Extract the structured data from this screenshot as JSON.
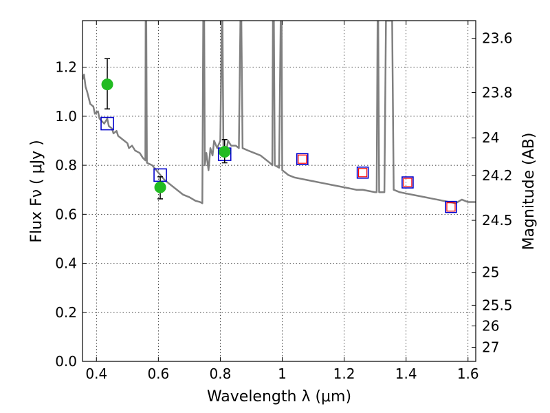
{
  "chart_data": {
    "type": "scatter",
    "xlabel": "Wavelength  λ (μm)",
    "ylabel": "Flux  Fν  ( μJy )",
    "ylabel_right": "Magnitude (AB)",
    "xlim": [
      0.355,
      1.625
    ],
    "ylim": [
      0.0,
      1.39
    ],
    "grid": true,
    "x_ticks": [
      "0.4",
      "0.6",
      "0.8",
      "1",
      "1.2",
      "1.4",
      "1.6"
    ],
    "x_tick_values": [
      0.4,
      0.6,
      0.8,
      1.0,
      1.2,
      1.4,
      1.6
    ],
    "y_ticks": [
      "0.0",
      "0.2",
      "0.4",
      "0.6",
      "0.8",
      "1.0",
      "1.2"
    ],
    "y_tick_values": [
      0.0,
      0.2,
      0.4,
      0.6,
      0.8,
      1.0,
      1.2
    ],
    "right_ticks": [
      "23.6",
      "23.8",
      "24",
      "24.2",
      "24.5",
      "25",
      "25.5",
      "26",
      "27"
    ],
    "right_tick_values": [
      23.6,
      23.8,
      24.0,
      24.2,
      24.5,
      25.0,
      25.5,
      26.0,
      27.0
    ],
    "colors": {
      "model": "#808080",
      "observed": "#22bb22",
      "model_blue": "#0000cc",
      "model_red": "#ff0000"
    },
    "series": [
      {
        "kind": "model-spectrum",
        "points": [
          [
            0.355,
            1.15
          ],
          [
            0.36,
            1.17
          ],
          [
            0.365,
            1.12
          ],
          [
            0.37,
            1.1
          ],
          [
            0.38,
            1.05
          ],
          [
            0.39,
            1.04
          ],
          [
            0.395,
            1.01
          ],
          [
            0.405,
            1.02
          ],
          [
            0.41,
            0.99
          ],
          [
            0.425,
            0.97
          ],
          [
            0.435,
            0.99
          ],
          [
            0.44,
            0.96
          ],
          [
            0.45,
            0.95
          ],
          [
            0.455,
            0.93
          ],
          [
            0.465,
            0.94
          ],
          [
            0.47,
            0.92
          ],
          [
            0.49,
            0.9
          ],
          [
            0.5,
            0.89
          ],
          [
            0.505,
            0.87
          ],
          [
            0.515,
            0.88
          ],
          [
            0.525,
            0.86
          ],
          [
            0.54,
            0.85
          ],
          [
            0.55,
            0.83
          ],
          [
            0.558,
            0.82
          ],
          [
            0.559,
            1.39
          ],
          [
            0.561,
            1.39
          ],
          [
            0.563,
            0.81
          ],
          [
            0.58,
            0.8
          ],
          [
            0.6,
            0.77
          ],
          [
            0.62,
            0.74
          ],
          [
            0.64,
            0.72
          ],
          [
            0.66,
            0.7
          ],
          [
            0.68,
            0.68
          ],
          [
            0.7,
            0.67
          ],
          [
            0.72,
            0.655
          ],
          [
            0.735,
            0.65
          ],
          [
            0.742,
            0.645
          ],
          [
            0.745,
            1.39
          ],
          [
            0.748,
            1.39
          ],
          [
            0.75,
            0.8
          ],
          [
            0.755,
            0.85
          ],
          [
            0.762,
            0.78
          ],
          [
            0.768,
            0.87
          ],
          [
            0.775,
            0.84
          ],
          [
            0.78,
            0.9
          ],
          [
            0.79,
            0.87
          ],
          [
            0.8,
            0.9
          ],
          [
            0.805,
            1.39
          ],
          [
            0.807,
            1.39
          ],
          [
            0.81,
            0.88
          ],
          [
            0.82,
            0.86
          ],
          [
            0.825,
            0.9
          ],
          [
            0.835,
            0.88
          ],
          [
            0.85,
            0.88
          ],
          [
            0.86,
            0.87
          ],
          [
            0.865,
            1.39
          ],
          [
            0.868,
            1.39
          ],
          [
            0.872,
            0.87
          ],
          [
            0.89,
            0.86
          ],
          [
            0.91,
            0.85
          ],
          [
            0.93,
            0.84
          ],
          [
            0.95,
            0.82
          ],
          [
            0.96,
            0.81
          ],
          [
            0.968,
            0.8
          ],
          [
            0.97,
            1.39
          ],
          [
            0.973,
            1.39
          ],
          [
            0.976,
            0.8
          ],
          [
            0.99,
            0.79
          ],
          [
            0.995,
            1.39
          ],
          [
            0.998,
            1.39
          ],
          [
            1.0,
            0.78
          ],
          [
            1.01,
            0.77
          ],
          [
            1.02,
            0.76
          ],
          [
            1.04,
            0.75
          ],
          [
            1.06,
            0.745
          ],
          [
            1.08,
            0.74
          ],
          [
            1.1,
            0.735
          ],
          [
            1.12,
            0.73
          ],
          [
            1.14,
            0.725
          ],
          [
            1.16,
            0.72
          ],
          [
            1.18,
            0.715
          ],
          [
            1.2,
            0.71
          ],
          [
            1.22,
            0.705
          ],
          [
            1.24,
            0.7
          ],
          [
            1.26,
            0.7
          ],
          [
            1.28,
            0.695
          ],
          [
            1.3,
            0.69
          ],
          [
            1.305,
            0.69
          ],
          [
            1.308,
            1.39
          ],
          [
            1.31,
            1.39
          ],
          [
            1.313,
            0.69
          ],
          [
            1.32,
            0.69
          ],
          [
            1.33,
            0.69
          ],
          [
            1.335,
            1.39
          ],
          [
            1.355,
            1.39
          ],
          [
            1.36,
            0.7
          ],
          [
            1.38,
            0.69
          ],
          [
            1.4,
            0.685
          ],
          [
            1.42,
            0.68
          ],
          [
            1.44,
            0.675
          ],
          [
            1.46,
            0.67
          ],
          [
            1.48,
            0.665
          ],
          [
            1.5,
            0.66
          ],
          [
            1.52,
            0.655
          ],
          [
            1.54,
            0.65
          ],
          [
            1.56,
            0.645
          ],
          [
            1.58,
            0.66
          ],
          [
            1.6,
            0.65
          ],
          [
            1.625,
            0.65
          ]
        ]
      },
      {
        "kind": "observed",
        "points": [
          {
            "x": 0.435,
            "y": 1.13,
            "yerr_low": 1.03,
            "yerr_high": 1.235
          },
          {
            "x": 0.606,
            "y": 0.71,
            "yerr_low": 0.663,
            "yerr_high": 0.753
          },
          {
            "x": 0.814,
            "y": 0.855,
            "yerr_low": 0.81,
            "yerr_high": 0.905
          }
        ]
      },
      {
        "kind": "model-photometry-blue",
        "points": [
          {
            "x": 0.435,
            "y": 0.97
          },
          {
            "x": 0.606,
            "y": 0.76
          },
          {
            "x": 0.814,
            "y": 0.845
          },
          {
            "x": 1.065,
            "y": 0.825
          },
          {
            "x": 1.26,
            "y": 0.77
          },
          {
            "x": 1.405,
            "y": 0.73
          },
          {
            "x": 1.545,
            "y": 0.63
          }
        ]
      },
      {
        "kind": "model-photometry-red",
        "points": [
          {
            "x": 1.065,
            "y": 0.825
          },
          {
            "x": 1.26,
            "y": 0.77
          },
          {
            "x": 1.405,
            "y": 0.73
          },
          {
            "x": 1.545,
            "y": 0.63
          }
        ]
      }
    ]
  }
}
